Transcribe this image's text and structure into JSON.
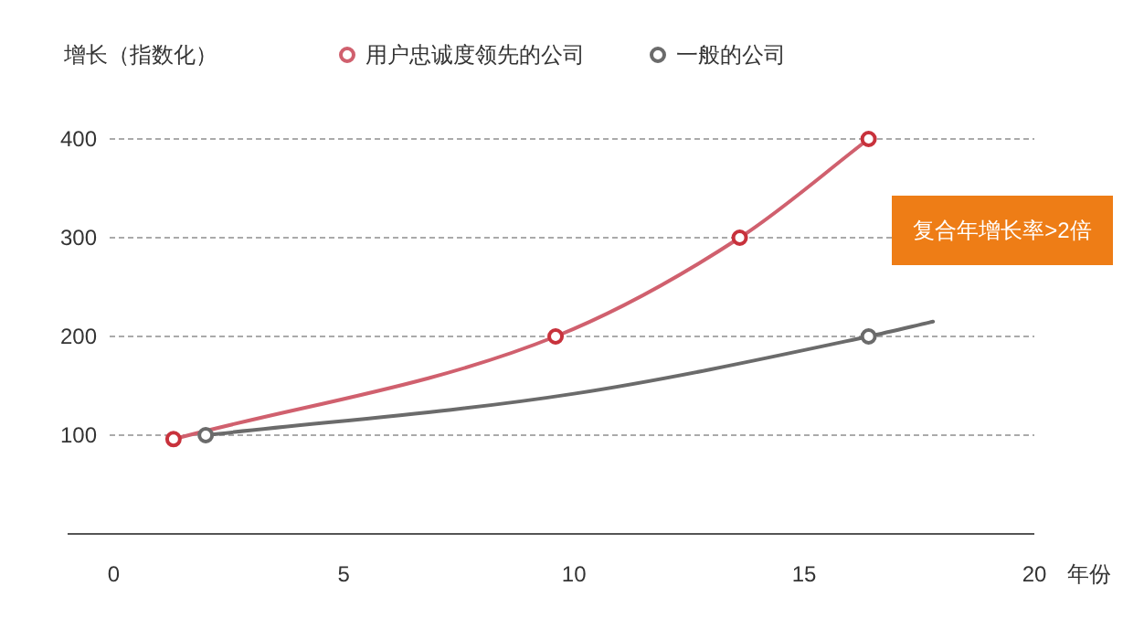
{
  "chart_data": {
    "type": "line",
    "ylabel": "增长（指数化）",
    "xlabel": "年份",
    "xlim": [
      -1,
      20
    ],
    "xticks": [
      0,
      5,
      10,
      15,
      20
    ],
    "ylim": [
      0,
      400
    ],
    "yticks": [
      100,
      200,
      300,
      400
    ],
    "grid": "y",
    "legend": "top",
    "series": [
      {
        "name": "用户忠诚度领先的公司",
        "color": "#d0606e",
        "marker": "none",
        "x": [
          1.3,
          9.6,
          13.6,
          16.4
        ],
        "values": [
          96,
          200,
          300,
          400
        ]
      },
      {
        "name": "一般的公司",
        "color": "#6b6b6b",
        "marker": "none",
        "x": [
          2,
          10,
          16.4,
          17.8
        ],
        "values": [
          100,
          142,
          200,
          215
        ]
      },
      {
        "type": "scatter",
        "color": "#c8323c",
        "marker": "circle",
        "x": [
          1.3,
          9.6,
          13.6,
          16.4
        ],
        "values": [
          96,
          200,
          300,
          400
        ]
      },
      {
        "type": "scatter",
        "color": "#6b6b6b",
        "marker": "circle",
        "x": [
          2,
          16.4
        ],
        "values": [
          100,
          200
        ]
      }
    ],
    "annotations": [
      "复合年增长率>2倍"
    ]
  }
}
